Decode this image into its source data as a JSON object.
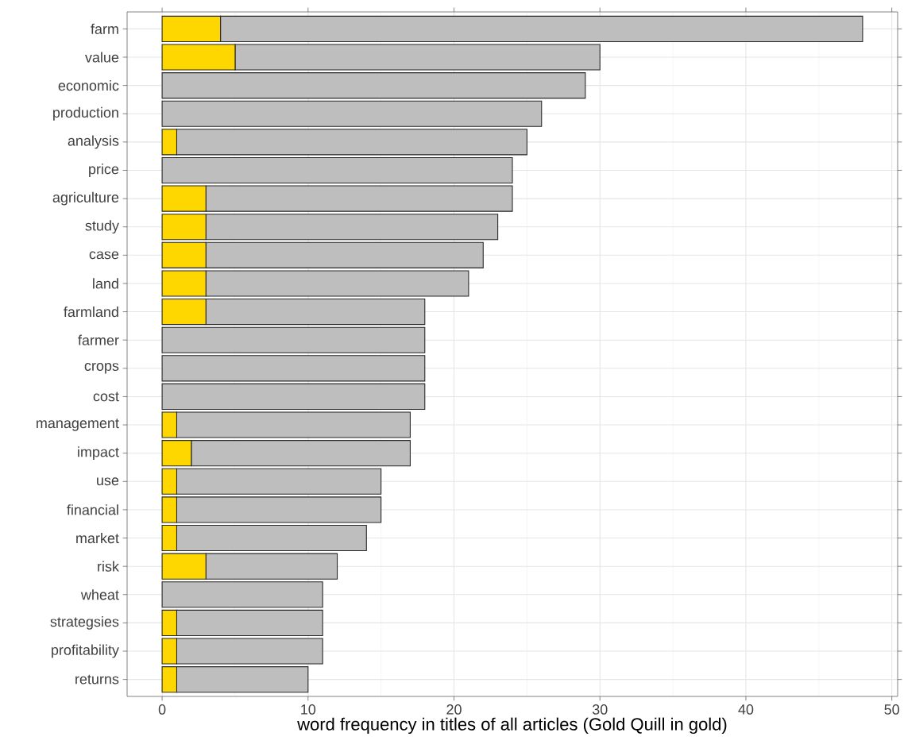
{
  "chart_data": {
    "type": "bar",
    "orientation": "horizontal",
    "stacked": true,
    "xlabel": "word frequency in titles of all articles (Gold Quill in gold)",
    "categories": [
      "farm",
      "value",
      "economic",
      "production",
      "analysis",
      "price",
      "agriculture",
      "study",
      "case",
      "land",
      "farmland",
      "farmer",
      "crops",
      "cost",
      "management",
      "impact",
      "use",
      "financial",
      "market",
      "risk",
      "wheat",
      "strategsies",
      "profitability",
      "returns"
    ],
    "series": [
      {
        "color": "#ffd700",
        "values": [
          4,
          5,
          0,
          0,
          1,
          0,
          3,
          3,
          3,
          3,
          3,
          0,
          0,
          0,
          1,
          2,
          1,
          1,
          1,
          3,
          0,
          1,
          1,
          1
        ]
      },
      {
        "color": "#bebebe",
        "values": [
          44,
          25,
          29,
          26,
          24,
          24,
          21,
          20,
          19,
          18,
          15,
          18,
          18,
          18,
          16,
          15,
          14,
          14,
          13,
          9,
          11,
          10,
          10,
          9
        ]
      }
    ],
    "xlim": [
      -2.4,
      50.4
    ],
    "xticks": [
      0,
      10,
      20,
      30,
      40,
      50
    ],
    "grid": true
  }
}
